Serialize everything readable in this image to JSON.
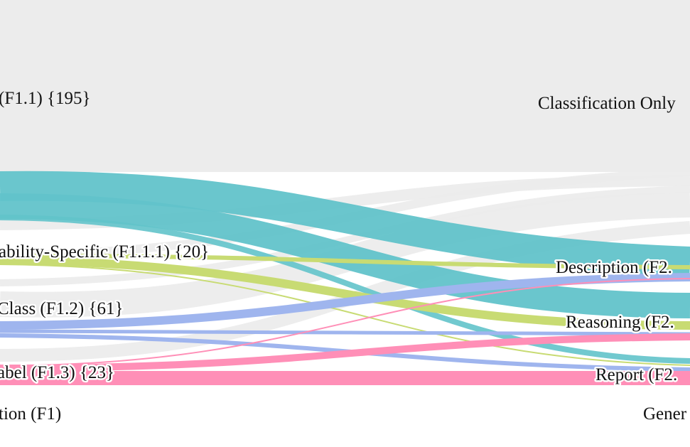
{
  "left_column": {
    "title": "tion (F1)",
    "nodes": [
      {
        "key": "f1_1",
        "label": "(F1.1) {195}"
      },
      {
        "key": "f1_1_1",
        "label": "ability-Specific (F1.1.1) {20}"
      },
      {
        "key": "f1_2",
        "label": "Class (F1.2) {61}"
      },
      {
        "key": "f1_3",
        "label": "abel (F1.3) {23}"
      }
    ]
  },
  "right_column": {
    "title": "Gener",
    "nodes": [
      {
        "key": "cls",
        "label": "Classification Only"
      },
      {
        "key": "desc",
        "label": "Description (F2."
      },
      {
        "key": "reas",
        "label": "Reasoning (F2."
      },
      {
        "key": "rep",
        "label": "Report (F2."
      }
    ]
  },
  "colors": {
    "f1_1": "#62c3ca",
    "f1_1_1": "#c8db73",
    "f1_2": "#9fb5ee",
    "f1_3": "#ff8fb7",
    "classification_only": "#ececec"
  }
}
